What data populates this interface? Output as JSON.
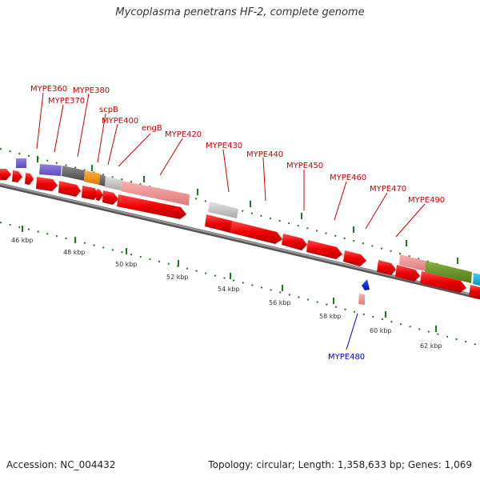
{
  "title": "Mycoplasma penetrans HF-2, complete genome",
  "footer": {
    "accession": "Accession: NC_004432",
    "stats": "Topology: circular; Length: 1,358,633 bp; Genes: 1,069"
  },
  "colors": {
    "label_forward": "#cc0000",
    "label_reverse": "#0000cc",
    "tick": "#1b7a1b",
    "backbone": "#888888"
  },
  "scale_labels": [
    "46 kbp",
    "48 kbp",
    "50 kbp",
    "52 kbp",
    "54 kbp",
    "56 kbp",
    "58 kbp",
    "60 kbp",
    "62 kbp"
  ],
  "gene_labels": [
    {
      "text": "MYPE360",
      "color": "red"
    },
    {
      "text": "MYPE370",
      "color": "red"
    },
    {
      "text": "MYPE380",
      "color": "red"
    },
    {
      "text": "scpB",
      "color": "red"
    },
    {
      "text": "MYPE400",
      "color": "red"
    },
    {
      "text": "engB",
      "color": "red"
    },
    {
      "text": "MYPE420",
      "color": "red"
    },
    {
      "text": "MYPE430",
      "color": "red"
    },
    {
      "text": "MYPE440",
      "color": "red"
    },
    {
      "text": "MYPE450",
      "color": "red"
    },
    {
      "text": "MYPE460",
      "color": "red"
    },
    {
      "text": "MYPE470",
      "color": "red"
    },
    {
      "text": "MYPE490",
      "color": "red"
    },
    {
      "text": "MYPE480",
      "color": "blue"
    }
  ]
}
